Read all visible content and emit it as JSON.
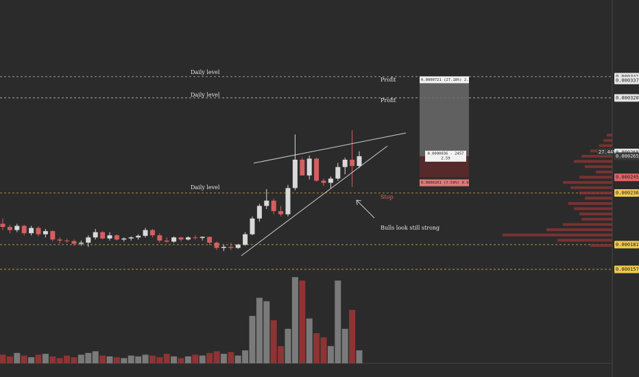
{
  "chart_data": {
    "type": "candlestick",
    "ylim": [
      0.000153,
      0.000414
    ],
    "vlim": [
      0,
      105
    ],
    "up_color": "#d9d9d9",
    "down_color": "#d45f5f",
    "volume_up_color": "#7a7a7a",
    "volume_down_color": "#8e3434",
    "yticks": [
      {
        "value": 0.000341,
        "label": "0.0003410",
        "color": "#e6e6e6",
        "level": true
      },
      {
        "value": 0.0003374,
        "label": "0.0003374",
        "color": "#e6e6e6"
      },
      {
        "value": 0.0003208,
        "label": "0.0003208",
        "color": "#e6e6e6",
        "level": true
      },
      {
        "value": 0.0002689,
        "label": "0.0002689",
        "color": "#e6e6e6"
      },
      {
        "value": 0.0002653,
        "label": "0.0002653",
        "color": "#3a3a3a"
      },
      {
        "value": 0.0002452,
        "label": "0.0002452",
        "color": "#e06666"
      },
      {
        "value": 0.0002303,
        "label": "0.0002303",
        "color": "#f0c850",
        "level": true
      },
      {
        "value": 0.0001811,
        "label": "0.0001811",
        "color": "#f0c850",
        "level": true
      },
      {
        "value": 0.0001576,
        "label": "0.0001576",
        "color": "#f0c850",
        "level": true
      }
    ],
    "open": [
      0.000201,
      0.000198,
      0.000195,
      0.000199,
      0.000192,
      0.000197,
      0.000191,
      0.000194,
      0.000186,
      0.000185,
      0.0001845,
      0.000182,
      0.000183,
      0.000188,
      0.000193,
      0.000187,
      0.00019,
      0.000186,
      0.000187,
      0.000188,
      0.0001895,
      0.000195,
      0.00019,
      0.000185,
      0.000184,
      0.000188,
      0.000186,
      0.000188,
      0.0001875,
      0.0001885,
      0.000183,
      0.000178,
      0.000179,
      0.000178,
      0.000181,
      0.000191,
      0.000206,
      0.000218,
      0.000223,
      0.000213,
      0.00021,
      0.000235,
      0.000262,
      0.000247,
      0.000263,
      0.000242,
      0.00024,
      0.000244,
      0.000255,
      0.000262,
      0.000256
    ],
    "high": [
      0.000206,
      0.0002,
      0.000201,
      0.0002,
      0.000199,
      0.0001985,
      0.000196,
      0.000195,
      0.000188,
      0.000187,
      0.000186,
      0.000185,
      0.00019,
      0.000196,
      0.000194,
      0.000193,
      0.000191,
      0.000188,
      0.000189,
      0.000191,
      0.000197,
      0.000196,
      0.000192,
      0.000188,
      0.000189,
      0.0001885,
      0.000189,
      0.00019,
      0.000189,
      0.000189,
      0.000184,
      0.000181,
      0.000183,
      0.000182,
      0.000193,
      0.000208,
      0.00022,
      0.000234,
      0.000225,
      0.000218,
      0.000238,
      0.000286,
      0.000264,
      0.000266,
      0.000264,
      0.000244,
      0.000246,
      0.000259,
      0.000264,
      0.00029,
      0.00027
    ],
    "low": [
      0.000195,
      0.000192,
      0.000193,
      0.00019,
      0.00019,
      0.000189,
      0.000188,
      0.000184,
      0.000182,
      0.000183,
      0.00018,
      0.00018,
      0.000179,
      0.000186,
      0.000186,
      0.000185,
      0.000185,
      0.000184,
      0.000185,
      0.000186,
      0.000188,
      0.000188,
      0.000183,
      0.000183,
      0.000183,
      0.000184,
      0.000185,
      0.000186,
      0.000185,
      0.000181,
      0.000176,
      0.000175,
      0.000176,
      0.000177,
      0.00018,
      0.00019,
      0.000203,
      0.000215,
      0.00021,
      0.000208,
      0.000208,
      0.000233,
      0.000247,
      0.000243,
      0.000241,
      0.000237,
      0.000235,
      0.000242,
      0.000248,
      0.000236,
      0.000254
    ],
    "close": [
      0.000198,
      0.000195,
      0.000199,
      0.000192,
      0.000197,
      0.000191,
      0.000194,
      0.000186,
      0.000185,
      0.0001845,
      0.000182,
      0.000183,
      0.000188,
      0.000193,
      0.000187,
      0.00019,
      0.000186,
      0.000187,
      0.000188,
      0.0001895,
      0.000195,
      0.00019,
      0.000185,
      0.000184,
      0.000188,
      0.000186,
      0.000188,
      0.0001875,
      0.0001885,
      0.000183,
      0.000178,
      0.000179,
      0.000178,
      0.000181,
      0.000191,
      0.000206,
      0.000218,
      0.000223,
      0.000213,
      0.00021,
      0.000235,
      0.000262,
      0.000247,
      0.000263,
      0.000242,
      0.00024,
      0.000244,
      0.000255,
      0.000262,
      0.000256,
      0.0002653
    ],
    "volume": [
      10,
      8,
      12,
      9,
      7,
      10,
      11,
      8,
      6,
      9,
      7,
      10,
      12,
      14,
      9,
      8,
      7,
      6,
      9,
      8,
      10,
      9,
      7,
      11,
      8,
      6,
      8,
      10,
      9,
      12,
      14,
      11,
      13,
      9,
      15,
      55,
      76,
      72,
      50,
      20,
      40,
      100,
      96,
      52,
      35,
      30,
      20,
      96,
      40,
      62,
      15
    ],
    "volume_profile": {
      "color": "#8e3434",
      "prices": [
        0.000285,
        0.00028,
        0.000275,
        0.00027,
        0.000265,
        0.00026,
        0.000255,
        0.00025,
        0.000245,
        0.00024,
        0.000235,
        0.00023,
        0.000225,
        0.00022,
        0.000215,
        0.00021,
        0.000205,
        0.0002,
        0.000195,
        0.00019,
        0.000185,
        0.00018
      ],
      "values": [
        5,
        8,
        12,
        20,
        28,
        35,
        25,
        15,
        30,
        45,
        38,
        30,
        25,
        40,
        35,
        30,
        28,
        45,
        60,
        100,
        50,
        20
      ]
    },
    "position": {
      "entry": 0.0002653,
      "target": 0.0003374,
      "stop": 0.0002452
    },
    "annotations": {
      "daily_level": "Daily level",
      "profit": "Profit",
      "stop": "Stop",
      "comment": "Bulls look still strong",
      "target_label": "0.0000721 (27.18%) 2.18",
      "entry_label": "0.0000036 - 2457",
      "entry_ratio": "2.59",
      "stop_label": "0.0000201 (7.59%) 0.95",
      "change": "27.44%"
    }
  }
}
